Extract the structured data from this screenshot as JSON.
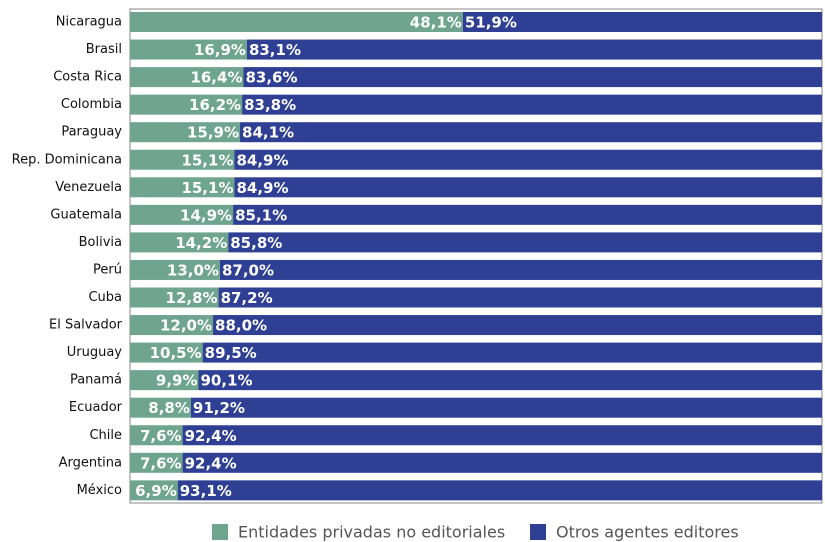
{
  "chart_data": {
    "type": "stacked_bar_horizontal",
    "categories": [
      "Nicaragua",
      "Brasil",
      "Costa Rica",
      "Colombia",
      "Paraguay",
      "Rep. Dominicana",
      "Venezuela",
      "Guatemala",
      "Bolivia",
      "Perú",
      "Cuba",
      "El Salvador",
      "Uruguay",
      "Panamá",
      "Ecuador",
      "Chile",
      "Argentina",
      "México"
    ],
    "series": [
      {
        "name": "Entidades privadas no editoriales",
        "color": "#6fa58e",
        "values": [
          48.1,
          16.9,
          16.4,
          16.2,
          15.9,
          15.1,
          15.1,
          14.9,
          14.2,
          13.0,
          12.8,
          12.0,
          10.5,
          9.9,
          8.8,
          7.6,
          7.6,
          6.9
        ],
        "value_labels": [
          "48,1%",
          "16,9%",
          "16,4%",
          "16,2%",
          "15,9%",
          "15,1%",
          "15,1%",
          "14,9%",
          "14,2%",
          "13,0%",
          "12,8%",
          "12,0%",
          "10,5%",
          "9,9%",
          "8,8%",
          "7,6%",
          "7,6%",
          "6,9%"
        ]
      },
      {
        "name": "Otros agentes editores",
        "color": "#2e3f94",
        "values": [
          51.9,
          83.1,
          83.6,
          83.8,
          84.1,
          84.9,
          84.9,
          85.1,
          85.8,
          87.0,
          87.2,
          88.0,
          89.5,
          90.1,
          91.2,
          92.4,
          92.4,
          93.1
        ],
        "value_labels": [
          "51,9%",
          "83,1%",
          "83,6%",
          "83,8%",
          "84,1%",
          "84,9%",
          "84,9%",
          "85,1%",
          "85,8%",
          "87,0%",
          "87,2%",
          "88,0%",
          "89,5%",
          "90,1%",
          "91,2%",
          "92,4%",
          "92,4%",
          "93,1%"
        ]
      }
    ],
    "xlim": [
      0,
      100
    ]
  }
}
